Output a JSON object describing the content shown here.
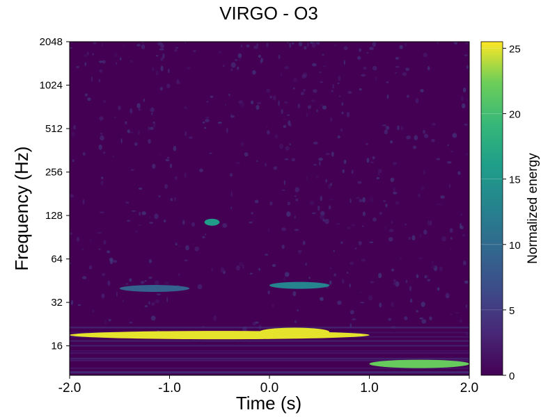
{
  "chart_data": {
    "type": "heatmap",
    "title": "VIRGO - O3",
    "xlabel": "Time (s)",
    "ylabel": "Frequency (Hz)",
    "x_range": [
      -2.0,
      2.0
    ],
    "y_range": [
      10,
      2048
    ],
    "y_scale": "log2",
    "x_ticks": [
      "-2.0",
      "-1.0",
      "0.0",
      "1.0",
      "2.0"
    ],
    "y_ticks": [
      "16",
      "32",
      "64",
      "128",
      "256",
      "512",
      "1024",
      "2048"
    ],
    "colormap": "viridis",
    "colorbar": {
      "label": "Normalized energy",
      "range": [
        0,
        25.5
      ],
      "ticks": [
        "0",
        "5",
        "10",
        "15",
        "20",
        "25"
      ]
    },
    "features": [
      {
        "description": "strong band",
        "freq": 19,
        "t_start": -2.0,
        "t_end": 1.0,
        "energy": 25
      },
      {
        "description": "blob",
        "freq": 20,
        "t_start": -0.1,
        "t_end": 0.6,
        "energy": 25
      },
      {
        "description": "band",
        "freq": 40,
        "t_start": -1.5,
        "t_end": -0.8,
        "energy": 9
      },
      {
        "description": "arc",
        "freq": 42,
        "t_start": 0.0,
        "t_end": 0.6,
        "energy": 13
      },
      {
        "description": "band",
        "freq": 12,
        "t_start": 1.0,
        "t_end": 2.0,
        "energy": 22
      },
      {
        "description": "blob",
        "freq": 115,
        "t_start": -0.65,
        "t_end": -0.5,
        "energy": 16
      }
    ]
  }
}
